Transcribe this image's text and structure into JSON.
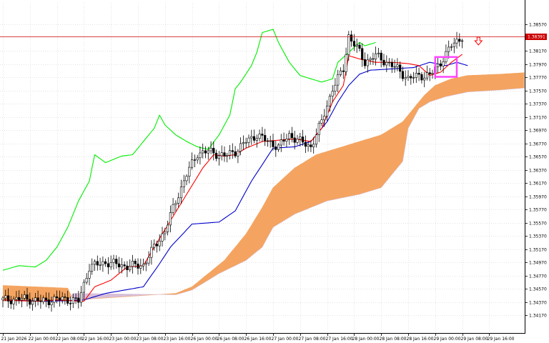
{
  "chart_data": {
    "type": "candlestick",
    "ylim": [
      1.339,
      1.389
    ],
    "grid": true,
    "colors": {
      "bull_body": "#ffffff",
      "bear_body": "#000000",
      "candle_outline": "#000000",
      "tenkan": "#ff0000",
      "kijun": "#0000cc",
      "chikou": "#00ee00",
      "kumo_bull": "#f4a460",
      "kumo_bear": "#d8bfd8",
      "price_line": "#cc0000",
      "price_tag": "#cc0000",
      "highlight_box": "#ff44ff",
      "arrow": "#ff0000"
    },
    "current_price": 1.38391,
    "current_price_label": "1.38391",
    "y_ticks": [
      {
        "value": 1.3857,
        "label": "1.38570"
      },
      {
        "value": 1.3817,
        "label": "1.38170"
      },
      {
        "value": 1.3797,
        "label": "1.37970"
      },
      {
        "value": 1.3777,
        "label": "1.37770"
      },
      {
        "value": 1.3757,
        "label": "1.37570"
      },
      {
        "value": 1.3737,
        "label": "1.37370"
      },
      {
        "value": 1.3717,
        "label": "1.37170"
      },
      {
        "value": 1.3697,
        "label": "1.36970"
      },
      {
        "value": 1.3677,
        "label": "1.36770"
      },
      {
        "value": 1.3657,
        "label": "1.36570"
      },
      {
        "value": 1.3637,
        "label": "1.36370"
      },
      {
        "value": 1.3617,
        "label": "1.36170"
      },
      {
        "value": 1.3597,
        "label": "1.35970"
      },
      {
        "value": 1.3577,
        "label": "1.35770"
      },
      {
        "value": 1.3557,
        "label": "1.35570"
      },
      {
        "value": 1.3537,
        "label": "1.35370"
      },
      {
        "value": 1.3517,
        "label": "1.35170"
      },
      {
        "value": 1.3497,
        "label": "1.34970"
      },
      {
        "value": 1.3477,
        "label": "1.34770"
      },
      {
        "value": 1.3457,
        "label": "1.34570"
      },
      {
        "value": 1.3437,
        "label": "1.34370"
      },
      {
        "value": 1.3417,
        "label": "1.34170"
      }
    ],
    "x_ticks": [
      {
        "index": 0,
        "label": "21 Jan 2026"
      },
      {
        "index": 10,
        "label": "22 Jan 00:00"
      },
      {
        "index": 20,
        "label": "22 Jan 08:00"
      },
      {
        "index": 30,
        "label": "22 Jan 16:00"
      },
      {
        "index": 40,
        "label": "23 Jan 00:00"
      },
      {
        "index": 50,
        "label": "23 Jan 08:00"
      },
      {
        "index": 60,
        "label": "23 Jan 16:00"
      },
      {
        "index": 70,
        "label": "26 Jan 00:00"
      },
      {
        "index": 80,
        "label": "26 Jan 08:00"
      },
      {
        "index": 90,
        "label": "26 Jan 16:00"
      },
      {
        "index": 100,
        "label": "27 Jan 00:00"
      },
      {
        "index": 110,
        "label": "27 Jan 08:00"
      },
      {
        "index": 120,
        "label": "27 Jan 16:00"
      },
      {
        "index": 130,
        "label": "28 Jan 00:00"
      },
      {
        "index": 140,
        "label": "28 Jan 08:00"
      },
      {
        "index": 150,
        "label": "28 Jan 16:00"
      },
      {
        "index": 160,
        "label": "29 Jan 00:00"
      },
      {
        "index": 170,
        "label": "29 Jan 08:00"
      },
      {
        "index": 180,
        "label": "29 Jan 16:00"
      }
    ],
    "series": {
      "close_anchors": [
        [
          0,
          1.344
        ],
        [
          8,
          1.3442
        ],
        [
          14,
          1.3438
        ],
        [
          22,
          1.3442
        ],
        [
          28,
          1.3438
        ],
        [
          32,
          1.349
        ],
        [
          38,
          1.3497
        ],
        [
          46,
          1.3491
        ],
        [
          52,
          1.3493
        ],
        [
          56,
          1.352
        ],
        [
          60,
          1.3545
        ],
        [
          64,
          1.359
        ],
        [
          68,
          1.363
        ],
        [
          72,
          1.3662
        ],
        [
          76,
          1.3665
        ],
        [
          82,
          1.3658
        ],
        [
          86,
          1.3665
        ],
        [
          90,
          1.368
        ],
        [
          94,
          1.369
        ],
        [
          98,
          1.368
        ],
        [
          102,
          1.3672
        ],
        [
          106,
          1.369
        ],
        [
          110,
          1.368
        ],
        [
          114,
          1.3672
        ],
        [
          118,
          1.371
        ],
        [
          122,
          1.376
        ],
        [
          126,
          1.379
        ],
        [
          128,
          1.384
        ],
        [
          132,
          1.3815
        ],
        [
          134,
          1.38
        ],
        [
          138,
          1.381
        ],
        [
          142,
          1.38
        ],
        [
          146,
          1.379
        ],
        [
          150,
          1.3775
        ],
        [
          154,
          1.378
        ],
        [
          158,
          1.378
        ],
        [
          162,
          1.38
        ],
        [
          166,
          1.3825
        ],
        [
          170,
          1.3839
        ]
      ],
      "tenkan_anchors": [
        [
          0,
          1.344
        ],
        [
          12,
          1.3438
        ],
        [
          20,
          1.344
        ],
        [
          30,
          1.3438
        ],
        [
          34,
          1.346
        ],
        [
          40,
          1.347
        ],
        [
          46,
          1.349
        ],
        [
          52,
          1.3492
        ],
        [
          56,
          1.352
        ],
        [
          62,
          1.356
        ],
        [
          68,
          1.36
        ],
        [
          74,
          1.364
        ],
        [
          78,
          1.366
        ],
        [
          82,
          1.3658
        ],
        [
          86,
          1.366
        ],
        [
          90,
          1.367
        ],
        [
          96,
          1.368
        ],
        [
          102,
          1.3682
        ],
        [
          108,
          1.3684
        ],
        [
          114,
          1.368
        ],
        [
          118,
          1.37
        ],
        [
          122,
          1.374
        ],
        [
          126,
          1.3765
        ],
        [
          128,
          1.381
        ],
        [
          132,
          1.3805
        ],
        [
          138,
          1.38
        ],
        [
          144,
          1.38
        ],
        [
          150,
          1.3798
        ],
        [
          154,
          1.3795
        ],
        [
          158,
          1.378
        ],
        [
          162,
          1.3785
        ],
        [
          166,
          1.38
        ],
        [
          170,
          1.3812
        ]
      ],
      "kijun_anchors": [
        [
          0,
          1.344
        ],
        [
          16,
          1.3438
        ],
        [
          30,
          1.344
        ],
        [
          38,
          1.345
        ],
        [
          52,
          1.346
        ],
        [
          58,
          1.3495
        ],
        [
          62,
          1.352
        ],
        [
          70,
          1.3555
        ],
        [
          80,
          1.3558
        ],
        [
          86,
          1.3575
        ],
        [
          92,
          1.362
        ],
        [
          100,
          1.367
        ],
        [
          108,
          1.3672
        ],
        [
          114,
          1.368
        ],
        [
          120,
          1.371
        ],
        [
          124,
          1.374
        ],
        [
          128,
          1.3765
        ],
        [
          132,
          1.3782
        ],
        [
          136,
          1.3788
        ],
        [
          144,
          1.379
        ],
        [
          152,
          1.3792
        ],
        [
          158,
          1.38
        ],
        [
          164,
          1.3795
        ],
        [
          168,
          1.38
        ],
        [
          172,
          1.3795
        ]
      ],
      "chikou_anchors": [
        [
          0,
          1.3485
        ],
        [
          6,
          1.3492
        ],
        [
          12,
          1.349
        ],
        [
          16,
          1.35
        ],
        [
          20,
          1.352
        ],
        [
          24,
          1.355
        ],
        [
          28,
          1.359
        ],
        [
          32,
          1.362
        ],
        [
          34,
          1.366
        ],
        [
          38,
          1.3648
        ],
        [
          44,
          1.3658
        ],
        [
          48,
          1.366
        ],
        [
          52,
          1.368
        ],
        [
          56,
          1.37
        ],
        [
          58,
          1.372
        ],
        [
          60,
          1.3705
        ],
        [
          64,
          1.369
        ],
        [
          68,
          1.368
        ],
        [
          72,
          1.3672
        ],
        [
          76,
          1.3668
        ],
        [
          80,
          1.369
        ],
        [
          84,
          1.372
        ],
        [
          86,
          1.376
        ],
        [
          88,
          1.377
        ],
        [
          92,
          1.3795
        ],
        [
          94,
          1.3815
        ],
        [
          96,
          1.3845
        ],
        [
          100,
          1.385
        ],
        [
          102,
          1.383
        ],
        [
          106,
          1.38
        ],
        [
          110,
          1.378
        ],
        [
          114,
          1.3775
        ],
        [
          118,
          1.377
        ],
        [
          122,
          1.3775
        ],
        [
          124,
          1.38
        ],
        [
          128,
          1.3815
        ],
        [
          132,
          1.383
        ],
        [
          134,
          1.3825
        ],
        [
          138,
          1.383
        ]
      ],
      "span_a_anchors": [
        [
          0,
          1.3462
        ],
        [
          24,
          1.3458
        ],
        [
          26,
          1.344
        ],
        [
          64,
          1.345
        ],
        [
          70,
          1.346
        ],
        [
          76,
          1.348
        ],
        [
          82,
          1.35
        ],
        [
          90,
          1.354
        ],
        [
          96,
          1.358
        ],
        [
          100,
          1.361
        ],
        [
          108,
          1.364
        ],
        [
          116,
          1.366
        ],
        [
          124,
          1.367
        ],
        [
          140,
          1.369
        ],
        [
          148,
          1.371
        ],
        [
          152,
          1.373
        ],
        [
          156,
          1.375
        ],
        [
          160,
          1.3765
        ],
        [
          166,
          1.3775
        ],
        [
          172,
          1.378
        ],
        [
          184,
          1.3782
        ],
        [
          196,
          1.3785
        ]
      ],
      "span_b_anchors": [
        [
          0,
          1.3438
        ],
        [
          24,
          1.3438
        ],
        [
          26,
          1.345
        ],
        [
          64,
          1.3448
        ],
        [
          70,
          1.3455
        ],
        [
          80,
          1.348
        ],
        [
          90,
          1.35
        ],
        [
          96,
          1.352
        ],
        [
          100,
          1.355
        ],
        [
          108,
          1.357
        ],
        [
          120,
          1.359
        ],
        [
          132,
          1.36
        ],
        [
          140,
          1.361
        ],
        [
          148,
          1.365
        ],
        [
          150,
          1.37
        ],
        [
          154,
          1.373
        ],
        [
          158,
          1.374
        ],
        [
          164,
          1.3748
        ],
        [
          172,
          1.3755
        ],
        [
          184,
          1.3758
        ],
        [
          196,
          1.3762
        ]
      ]
    },
    "annotations": [
      {
        "kind": "rectangle",
        "x_range": [
          160,
          168
        ],
        "y_range": [
          1.3778,
          1.3808
        ]
      },
      {
        "kind": "down-arrow",
        "index": 176,
        "y": 1.3838
      }
    ]
  }
}
